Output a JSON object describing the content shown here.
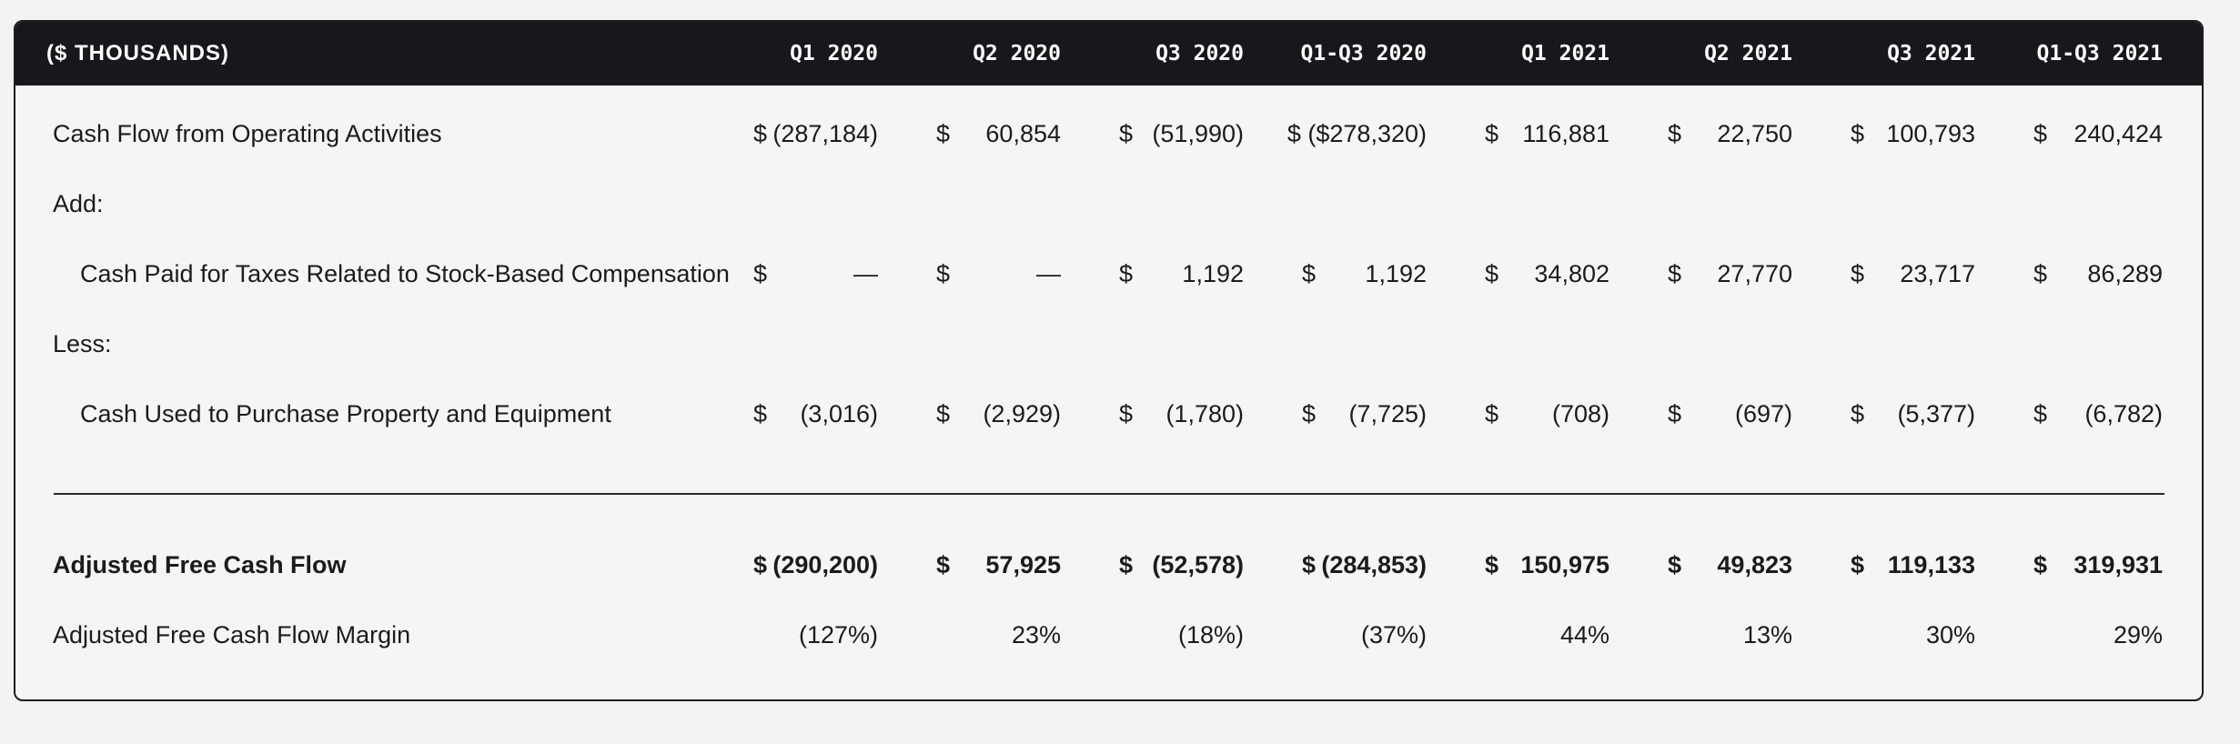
{
  "header": {
    "label": "($ THOUSANDS)",
    "columns": [
      "Q1 2020",
      "Q2 2020",
      "Q3 2020",
      "Q1-Q3 2020",
      "Q1 2021",
      "Q2 2021",
      "Q3 2021",
      "Q1-Q3 2021"
    ]
  },
  "rows": [
    {
      "label": "Cash Flow from Operating Activities",
      "cur": [
        "$",
        "$",
        "$",
        "",
        "$",
        "$",
        "$",
        "$"
      ],
      "values": [
        "(287,184)",
        "60,854",
        "(51,990)",
        "$ ($278,320)",
        "116,881",
        "22,750",
        "100,793",
        "240,424"
      ]
    },
    {
      "label": "Add:"
    },
    {
      "label": "Cash Paid for Taxes Related to Stock-Based Compensation",
      "cur": [
        "$",
        "$",
        "$",
        "$",
        "$",
        "$",
        "$",
        "$"
      ],
      "values": [
        "—",
        "—",
        "1,192",
        "1,192",
        "34,802",
        "27,770",
        "23,717",
        "86,289"
      ]
    },
    {
      "label": "Less:"
    },
    {
      "label": "Cash Used to Purchase Property and Equipment",
      "cur": [
        "$",
        "$",
        "$",
        "$",
        "$",
        "$",
        "$",
        "$"
      ],
      "values": [
        "(3,016)",
        "(2,929)",
        "(1,780)",
        "(7,725)",
        "(708)",
        "(697)",
        "(5,377)",
        "(6,782)"
      ]
    },
    {
      "label": "Adjusted Free Cash Flow",
      "cur": [
        "$",
        "$",
        "$",
        "$",
        "$",
        "$",
        "$",
        "$"
      ],
      "values": [
        "(290,200)",
        "57,925",
        "(52,578)",
        "(284,853)",
        "150,975",
        "49,823",
        "119,133",
        "319,931"
      ]
    },
    {
      "label": "Adjusted Free Cash Flow Margin",
      "values": [
        "(127%)",
        "23%",
        "(18%)",
        "(37%)",
        "44%",
        "13%",
        "30%",
        "29%"
      ]
    }
  ]
}
